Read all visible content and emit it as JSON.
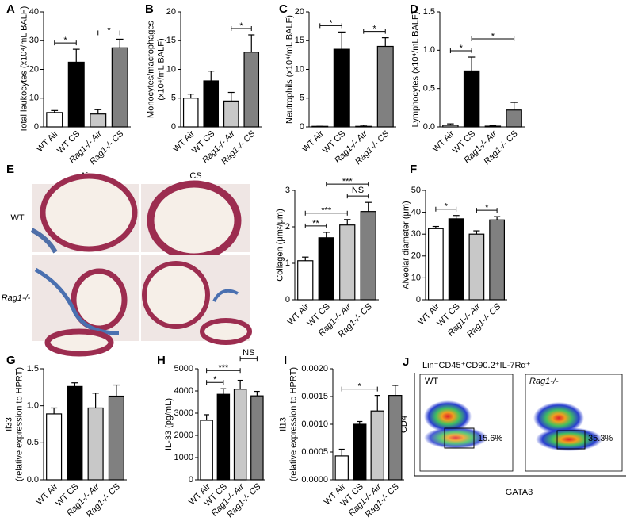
{
  "chart_data": [
    {
      "type": "bar",
      "panel": "A",
      "ylabel": "Total leukocytes (x10⁴/mL BALF)",
      "categories": [
        "WT Air",
        "WT CS",
        "Rag1-/- Air",
        "Rag1-/- CS"
      ],
      "values": [
        5,
        22.5,
        4.5,
        27.5
      ],
      "errors": [
        0.7,
        4.5,
        1.5,
        3
      ],
      "colors": [
        "#ffffff",
        "#000000",
        "#c8c8c8",
        "#808080"
      ],
      "ylim": [
        0,
        40
      ],
      "yticks": [
        0,
        10,
        20,
        30,
        40
      ],
      "significance": [
        {
          "from": 0,
          "to": 1,
          "label": "*"
        },
        {
          "from": 2,
          "to": 3,
          "label": "*"
        }
      ]
    },
    {
      "type": "bar",
      "panel": "B",
      "ylabel": [
        "Monocytes/macrophages",
        "(x10⁴/mL BALF)"
      ],
      "categories": [
        "WT Air",
        "WT CS",
        "Rag1-/- Air",
        "Rag1-/- CS"
      ],
      "values": [
        5,
        8,
        4.5,
        13
      ],
      "errors": [
        0.7,
        1.7,
        1.5,
        3
      ],
      "colors": [
        "#ffffff",
        "#000000",
        "#c8c8c8",
        "#808080"
      ],
      "ylim": [
        0,
        20
      ],
      "yticks": [
        0,
        5,
        10,
        15,
        20
      ],
      "significance": [
        {
          "from": 2,
          "to": 3,
          "label": "*"
        }
      ]
    },
    {
      "type": "bar",
      "panel": "C",
      "ylabel": "Neutrophils (x10⁴/mL BALF)",
      "categories": [
        "WT Air",
        "WT CS",
        "Rag1-/- Air",
        "Rag1-/- CS"
      ],
      "values": [
        0.1,
        13.5,
        0.1,
        14
      ],
      "errors": [
        0,
        3,
        0.2,
        1.5
      ],
      "colors": [
        "#ffffff",
        "#000000",
        "#c8c8c8",
        "#808080"
      ],
      "ylim": [
        0,
        20
      ],
      "yticks": [
        0,
        5,
        10,
        15,
        20
      ],
      "significance": [
        {
          "from": 0,
          "to": 1,
          "label": "*"
        },
        {
          "from": 2,
          "to": 3,
          "label": "*"
        }
      ]
    },
    {
      "type": "bar",
      "panel": "D",
      "ylabel": "Lymphocytes (x10⁴/mL BALF)",
      "categories": [
        "WT Air",
        "WT CS",
        "Rag1-/- Air",
        "Rag1-/- CS"
      ],
      "values": [
        0.02,
        0.73,
        0.01,
        0.22
      ],
      "errors": [
        0.02,
        0.18,
        0.01,
        0.1
      ],
      "colors": [
        "#ffffff",
        "#000000",
        "#c8c8c8",
        "#808080"
      ],
      "ylim": [
        0,
        1.5
      ],
      "yticks": [
        {
          "value": 0,
          "label": "0.0"
        },
        {
          "value": 0.5,
          "label": "0.5"
        },
        {
          "value": 1,
          "label": "1.0"
        },
        {
          "value": 1.5,
          "label": "1.5"
        }
      ],
      "significance": [
        {
          "from": 0,
          "to": 1,
          "label": "*"
        },
        {
          "from": 1,
          "to": 3,
          "label": "*"
        }
      ]
    },
    {
      "type": "bar",
      "ylabel": "Collagen (μm²/μm)",
      "categories": [
        "WT Air",
        "WT CS",
        "Rag1-/- Air",
        "Rag1-/- CS"
      ],
      "values": [
        1.07,
        1.7,
        2.05,
        2.42
      ],
      "errors": [
        0.1,
        0.15,
        0.15,
        0.25
      ],
      "colors": [
        "#ffffff",
        "#000000",
        "#c8c8c8",
        "#808080"
      ],
      "ylim": [
        0,
        3
      ],
      "yticks": [
        0,
        1,
        2,
        3
      ],
      "significance": [
        {
          "from": 0,
          "to": 1,
          "label": "**"
        },
        {
          "from": 0,
          "to": 2,
          "label": "***"
        },
        {
          "from": 2,
          "to": 3,
          "label": "NS"
        },
        {
          "from": 1,
          "to": 3,
          "label": "***"
        }
      ]
    },
    {
      "type": "bar",
      "panel": "F",
      "ylabel": "Alveolar diameter (μm)",
      "categories": [
        "WT Air",
        "WT CS",
        "Rag1-/- Air",
        "Rag1-/- CS"
      ],
      "values": [
        32.5,
        37,
        30,
        36.5
      ],
      "errors": [
        1,
        1.5,
        1.5,
        1.5
      ],
      "colors": [
        "#ffffff",
        "#000000",
        "#c8c8c8",
        "#808080"
      ],
      "ylim": [
        0,
        50
      ],
      "yticks": [
        0,
        10,
        20,
        30,
        40,
        50
      ],
      "significance": [
        {
          "from": 0,
          "to": 1,
          "label": "*"
        },
        {
          "from": 2,
          "to": 3,
          "label": "*"
        }
      ]
    },
    {
      "type": "bar",
      "panel": "G",
      "ylabel": [
        "Il33",
        "(relative expression to HPRT)"
      ],
      "categories": [
        "WT Air",
        "WT CS",
        "Rag1-/- Air",
        "Rag1-/- CS"
      ],
      "values": [
        0.89,
        1.26,
        0.97,
        1.13
      ],
      "errors": [
        0.08,
        0.05,
        0.2,
        0.15
      ],
      "colors": [
        "#ffffff",
        "#000000",
        "#c8c8c8",
        "#808080"
      ],
      "ylim": [
        0,
        1.5
      ],
      "yticks": [
        {
          "value": 0,
          "label": "0.0"
        },
        {
          "value": 0.5,
          "label": "0.5"
        },
        {
          "value": 1,
          "label": "1.0"
        },
        {
          "value": 1.5,
          "label": "1.5"
        }
      ],
      "significance": []
    },
    {
      "type": "bar",
      "panel": "H",
      "ylabel": "IL-33 (pg/mL)",
      "categories": [
        "WT Air",
        "WT CS",
        "Rag1-/- Air",
        "Rag1-/- CS"
      ],
      "values": [
        2680,
        3850,
        4080,
        3780
      ],
      "errors": [
        250,
        250,
        400,
        200
      ],
      "colors": [
        "#ffffff",
        "#000000",
        "#c8c8c8",
        "#808080"
      ],
      "ylim": [
        0,
        5000
      ],
      "yticks": [
        0,
        1000,
        2000,
        3000,
        4000,
        5000
      ],
      "significance": [
        {
          "from": 0,
          "to": 1,
          "label": "*"
        },
        {
          "from": 0,
          "to": 2,
          "label": "***"
        },
        {
          "from": 2,
          "to": 3,
          "label": "NS"
        }
      ]
    },
    {
      "type": "bar",
      "panel": "I",
      "ylabel": [
        "Il13",
        "(relative expression to HPRT)"
      ],
      "categories": [
        "WT Air",
        "WT CS",
        "Rag1-/- Air",
        "Rag1-/- CS"
      ],
      "values": [
        0.00043,
        0.001,
        0.00124,
        0.00152
      ],
      "errors": [
        0.00012,
        5e-05,
        0.00028,
        0.00018
      ],
      "colors": [
        "#ffffff",
        "#000000",
        "#c8c8c8",
        "#808080"
      ],
      "ylim": [
        0,
        0.002
      ],
      "yticks": [
        {
          "value": 0,
          "label": "0.0000"
        },
        {
          "value": 0.0005,
          "label": "0.0005"
        },
        {
          "value": 0.001,
          "label": "0.0010"
        },
        {
          "value": 0.0015,
          "label": "0.0015"
        },
        {
          "value": 0.002,
          "label": "0.0020"
        }
      ],
      "significance": [
        {
          "from": 0,
          "to": 2,
          "label": "*"
        }
      ]
    }
  ],
  "histology": {
    "panel": "E",
    "columns": [
      "Air",
      "CS"
    ],
    "rows": [
      "WT",
      "Rag1-/-"
    ]
  },
  "flow_cytometry": {
    "panel": "J",
    "title": "Lin⁻CD45⁺CD90.2⁺IL-7Rα⁺",
    "plots": [
      {
        "label": "WT",
        "gate": "15.6%"
      },
      {
        "label": "Rag1-/-",
        "gate": "35.3%"
      }
    ],
    "xlabel": "GATA3",
    "ylabel": "CD4"
  }
}
